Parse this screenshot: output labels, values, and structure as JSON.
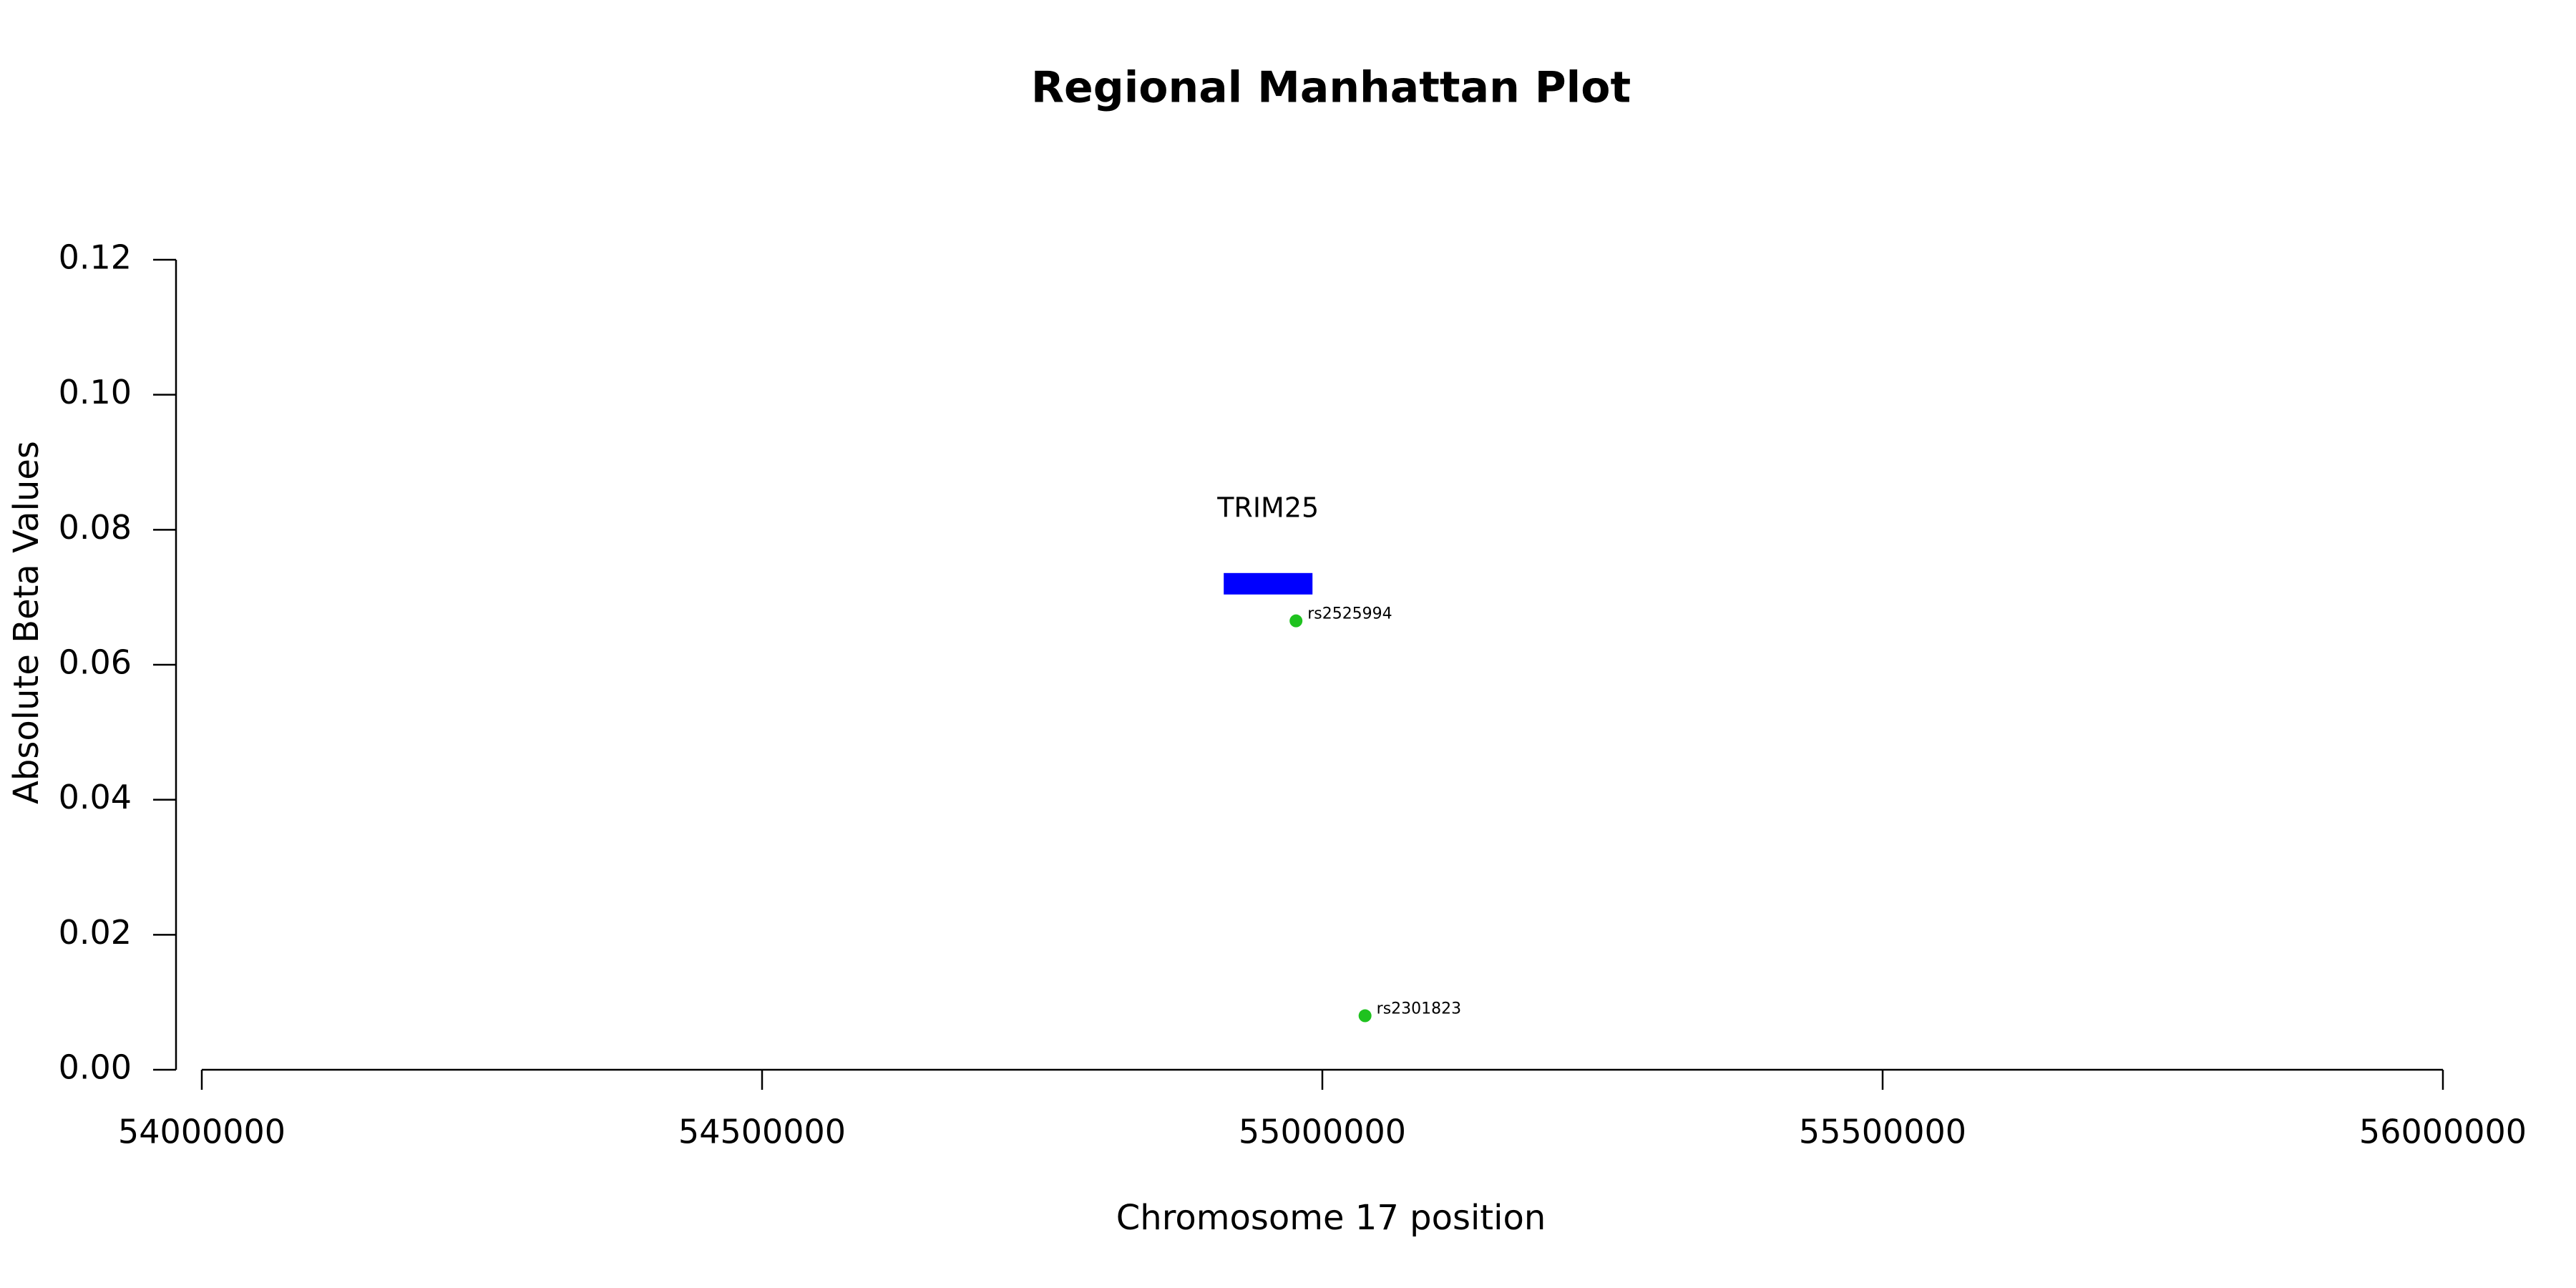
{
  "chart_data": {
    "type": "scatter",
    "title": "Regional Manhattan Plot",
    "x_label": "Chromosome 17 position",
    "y_label": "Absolute Beta Values",
    "xlim": [
      54000000,
      56000000
    ],
    "xticks": [
      54000000,
      54500000,
      55000000,
      55500000,
      56000000
    ],
    "ylim": [
      0,
      0.12
    ],
    "yticks": [
      {
        "value": 0,
        "label": "0.00"
      },
      {
        "value": 0.02,
        "label": "0.02"
      },
      {
        "value": 0.04,
        "label": "0.04"
      },
      {
        "value": 0.06,
        "label": "0.06"
      },
      {
        "value": 0.08,
        "label": "0.08"
      },
      {
        "value": 0.1,
        "label": "0.10"
      },
      {
        "value": 0.12,
        "label": "0.12"
      }
    ],
    "points": {
      "color": "#1fc21f",
      "labels": [
        "rs2525994",
        "rs2301823"
      ],
      "x": [
        54976500,
        55038100
      ],
      "values": [
        0.0665,
        0.008
      ]
    },
    "gene": {
      "name": "TRIM25",
      "start": 54912000,
      "end": 54991200,
      "y": 0.072,
      "color": "#0000ff"
    }
  }
}
